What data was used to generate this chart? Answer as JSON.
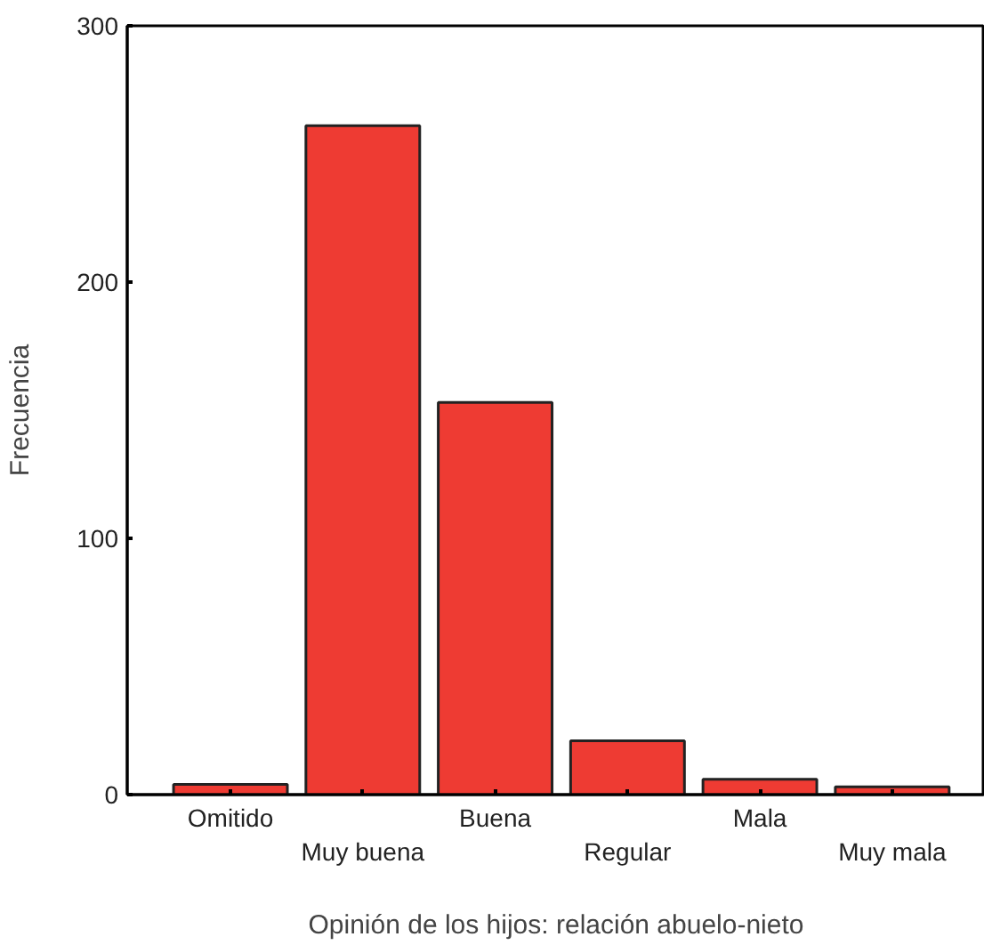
{
  "chart_data": {
    "type": "bar",
    "xlabel": "Opinión de los hijos: relación abuelo-nieto",
    "ylabel": "Frecuencia",
    "categories": [
      "Omitido",
      "Muy buena",
      "Buena",
      "Regular",
      "Mala",
      "Muy mala"
    ],
    "values": [
      4,
      261,
      153,
      21,
      6,
      3
    ],
    "color": "#ee3b33",
    "ylim": [
      0,
      300
    ],
    "yticks": [
      0,
      100,
      200,
      300
    ],
    "grid": false
  }
}
